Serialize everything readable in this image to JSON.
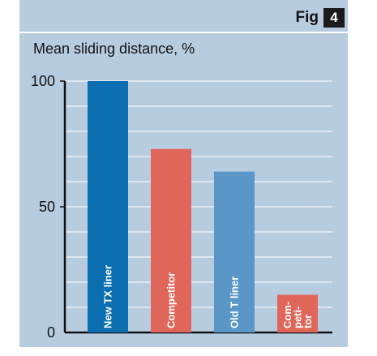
{
  "figure": {
    "label": "Fig",
    "number": "4"
  },
  "chart_data": {
    "type": "bar",
    "ylabel": "Mean sliding distance, %",
    "ylim": [
      0,
      100
    ],
    "yticks": [
      0,
      50,
      100
    ],
    "grid": true,
    "categories": [
      "New TX liner",
      "Competitor",
      "Old T liner",
      "Com-\npeti-\ntor"
    ],
    "values": [
      100,
      73,
      64,
      15
    ],
    "colors": [
      "#0a6eb0",
      "#e0665a",
      "#5a96c8",
      "#e0665a"
    ]
  }
}
